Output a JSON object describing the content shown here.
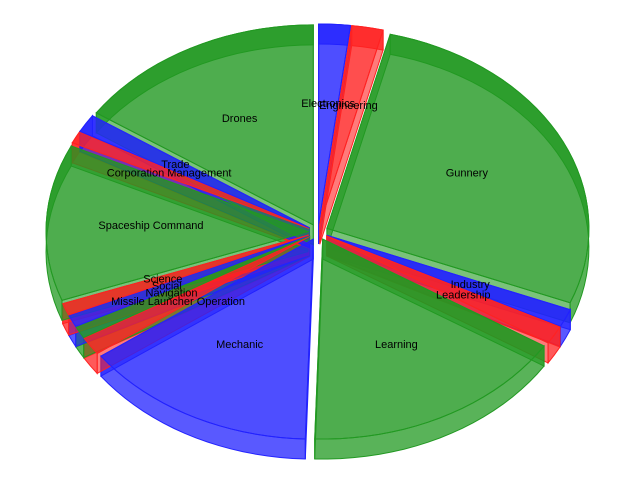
{
  "chart_data": {
    "type": "pie",
    "categories": [
      "Electronics",
      "Engineering",
      "Gunnery",
      "Industry",
      "Leadership",
      "Learning",
      "Mechanic",
      "Missile Launcher Operation",
      "Navigation",
      "Social",
      "Science",
      "Spaceship Command",
      "Corporation Management",
      "Trade",
      "Drones"
    ],
    "values": [
      2,
      2,
      28,
      1.5,
      1.5,
      17,
      15,
      1.5,
      1,
      1,
      1,
      13,
      1,
      1.5,
      16
    ],
    "colors": [
      "#2222ff",
      "#ff2222",
      "#229922",
      "#2222ff",
      "#ff2222",
      "#229922",
      "#2222ff",
      "#ff2222",
      "#229922",
      "#2222ff",
      "#ff2222",
      "#229922",
      "#ff2222",
      "#2222ff",
      "#229922"
    ]
  }
}
